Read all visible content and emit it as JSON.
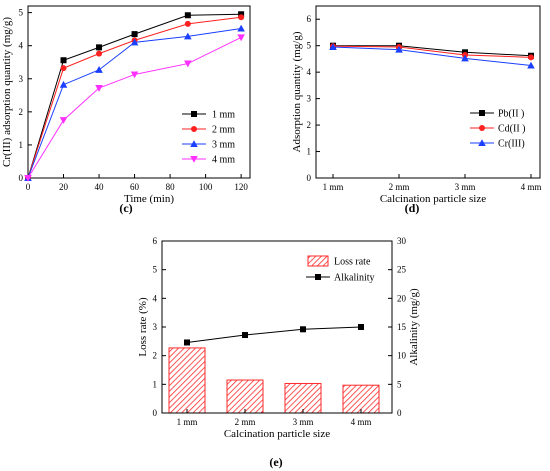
{
  "colors": {
    "black": "#000000",
    "red": "#ff2020",
    "blue": "#1a3fff",
    "magenta": "#ff30ff",
    "hatch": "#ff2a2a"
  },
  "panels": [
    {
      "label": "(c)"
    },
    {
      "label": "(d)"
    },
    {
      "label": "(e)"
    }
  ],
  "chart_data": [
    {
      "panel": "c",
      "type": "line",
      "xlabel": "Time (min)",
      "ylabel": "Cr(III)  adsorption quantity (mg/g)",
      "xlim": [
        0,
        125
      ],
      "ylim": [
        0,
        5.2
      ],
      "xticks": [
        0,
        20,
        40,
        60,
        80,
        100,
        120
      ],
      "yticks": [
        0,
        1,
        2,
        3,
        4,
        5
      ],
      "x": [
        0,
        20,
        40,
        60,
        90,
        120
      ],
      "legend_position": "bottom-right",
      "series": [
        {
          "name": "1 mm",
          "color": "#000000",
          "marker": "square",
          "values": [
            0,
            3.56,
            3.95,
            4.35,
            4.92,
            4.95
          ]
        },
        {
          "name": "2 mm",
          "color": "#ff2020",
          "marker": "circle",
          "values": [
            0,
            3.32,
            3.76,
            4.16,
            4.66,
            4.86
          ]
        },
        {
          "name": "3 mm",
          "color": "#1a3fff",
          "marker": "triangle-up",
          "values": [
            0,
            2.82,
            3.27,
            4.1,
            4.28,
            4.52
          ]
        },
        {
          "name": "4 mm",
          "color": "#ff30ff",
          "marker": "triangle-down",
          "values": [
            0,
            1.75,
            2.72,
            3.13,
            3.46,
            4.25
          ]
        }
      ]
    },
    {
      "panel": "d",
      "type": "line",
      "xlabel": "Calcination particle size",
      "ylabel": "Adsorption quantity (mg/g)",
      "categories": [
        "1 mm",
        "2 mm",
        "3 mm",
        "4 mm"
      ],
      "ylim": [
        0,
        6.5
      ],
      "yticks": [
        0,
        1,
        2,
        3,
        4,
        5,
        6
      ],
      "legend_position": "bottom-right",
      "series": [
        {
          "name": "Pb(II )",
          "color": "#000000",
          "marker": "square",
          "values": [
            5.0,
            5.0,
            4.75,
            4.62
          ]
        },
        {
          "name": "Cd(II )",
          "color": "#ff2020",
          "marker": "circle",
          "values": [
            4.98,
            4.95,
            4.65,
            4.56
          ]
        },
        {
          "name": "Cr(III)",
          "color": "#1a3fff",
          "marker": "triangle-up",
          "values": [
            4.95,
            4.85,
            4.52,
            4.25
          ]
        }
      ]
    },
    {
      "panel": "e",
      "type": "bar",
      "xlabel": "Calcination particle size",
      "ylabel": "Loss rate (%)",
      "ylabel_right": "Alkalinity (mg/g)",
      "categories": [
        "1 mm",
        "2 mm",
        "3 mm",
        "4 mm"
      ],
      "ylim": [
        0,
        6
      ],
      "yticks": [
        0,
        1,
        2,
        3,
        4,
        5,
        6
      ],
      "ylim_right": [
        0,
        30
      ],
      "yticks_right": [
        0,
        5,
        10,
        15,
        20,
        25,
        30
      ],
      "legend_position": "top-right",
      "series": [
        {
          "name": "Loss rate",
          "kind": "bar",
          "axis": "left",
          "color": "#ff2a2a",
          "values": [
            2.27,
            1.15,
            1.03,
            0.97
          ]
        },
        {
          "name": "Alkalinity",
          "kind": "line",
          "axis": "right",
          "color": "#000000",
          "marker": "square",
          "values": [
            12.3,
            13.6,
            14.6,
            15.0
          ]
        }
      ]
    }
  ]
}
